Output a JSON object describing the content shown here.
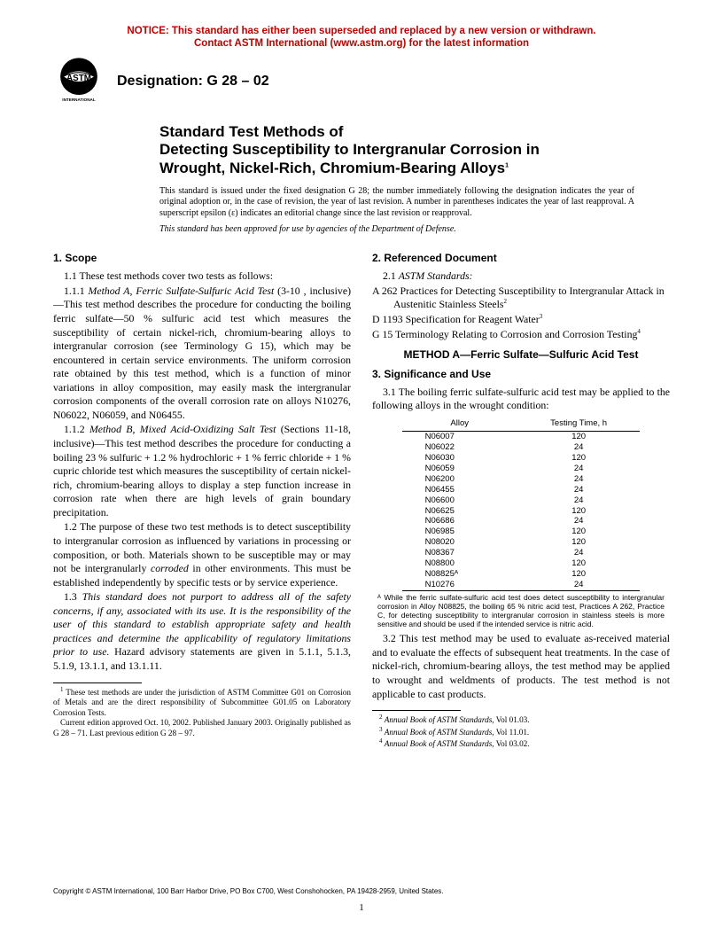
{
  "notice": {
    "line1": "NOTICE: This standard has either been superseded and replaced by a new version or withdrawn.",
    "line2": "Contact ASTM International (www.astm.org) for the latest information",
    "color": "#c00000"
  },
  "logo": {
    "text_top": "ASTM",
    "text_bottom": "INTERNATIONAL",
    "fill": "#000000"
  },
  "designation": "Designation: G 28 – 02",
  "title": {
    "l1": "Standard Test Methods of",
    "l2": "Detecting Susceptibility to Intergranular Corrosion in",
    "l3": "Wrought, Nickel-Rich, Chromium-Bearing Alloys"
  },
  "title_sup": "1",
  "issue_note": "This standard is issued under the fixed designation G 28; the number immediately following the designation indicates the year of original adoption or, in the case of revision, the year of last revision. A number in parentheses indicates the year of last reapproval. A superscript epsilon (ε) indicates an editorial change since the last revision or reapproval.",
  "dod_note": "This standard has been approved for use by agencies of the Department of Defense.",
  "left": {
    "scope_head": "1. Scope",
    "p1_1": "1.1 These test methods cover two tests as follows:",
    "p1_1_1_label": "1.1.1 ",
    "p1_1_1_ital": "Method A, Ferric Sulfate-Sulfuric Acid Test",
    "p1_1_1_rest": " (3-10 , inclusive)—This test method describes the procedure for conducting the boiling ferric sulfate—50 % sulfuric acid test which measures the susceptibility of certain nickel-rich, chromium-bearing alloys to intergranular corrosion (see Terminology G 15), which may be encountered in certain service environments. The uniform corrosion rate obtained by this test method, which is a function of minor variations in alloy composition, may easily mask the intergranular corrosion components of the overall corrosion rate on alloys N10276, N06022, N06059, and N06455.",
    "p1_1_2_label": "1.1.2 ",
    "p1_1_2_ital": "Method B, Mixed Acid-Oxidizing Salt Test",
    "p1_1_2_rest": " (Sections 11-18, inclusive)—This test method describes the procedure for conducting a boiling 23 % sulfuric + 1.2 % hydrochloric + 1 % ferric chloride + 1 % cupric chloride test which measures the susceptibility of certain nickel-rich, chromium-bearing alloys to display a step function increase in corrosion rate when there are high levels of grain boundary precipitation.",
    "p1_2a": "1.2 The purpose of these two test methods is to detect susceptibility to intergranular corrosion as influenced by variations in processing or composition, or both. Materials shown to be susceptible may or may not be intergranularly ",
    "p1_2_ital": "corroded",
    "p1_2b": " in other environments. This must be established independently by specific tests or by service experience.",
    "p1_3_label": "1.3 ",
    "p1_3_ital": "This standard does not purport to address all of the safety concerns, if any, associated with its use. It is the responsibility of the user of this standard to establish appropriate safety and health practices and determine the applicability of regulatory limitations prior to use.",
    "p1_3_rest": " Hazard advisory statements are given in 5.1.1, 5.1.3, 5.1.9, 13.1.1, and 13.1.11.",
    "fn1a": " These test methods are under the jurisdiction of ASTM Committee G01 on Corrosion of Metals and are the direct responsibility of Subcommittee G01.05 on Laboratory Corrosion Tests.",
    "fn1b": "Current edition approved Oct. 10, 2002. Published January 2003. Originally published as G 28 – 71. Last previous edition G 28 – 97."
  },
  "right": {
    "ref_head": "2. Referenced Document",
    "astm_std": "2.1 ASTM Standards:",
    "ref1a": "A 262 Practices for Detecting Susceptibility to Intergranular Attack in Austenitic Stainless Steels",
    "ref2a": "D 1193 Specification for Reagent Water",
    "ref3a": "G 15 Terminology Relating to Corrosion and Corrosion Testing",
    "method_head": "METHOD A—Ferric Sulfate—Sulfuric Acid Test",
    "sig_head": "3. Significance and Use",
    "p3_1": "3.1 The boiling ferric sulfate-sulfuric acid test may be applied to the following alloys in the wrought condition:",
    "table": {
      "head_alloy": "Alloy",
      "head_time": "Testing Time, h",
      "rows": [
        {
          "a": "N06007",
          "t": "120"
        },
        {
          "a": "N06022",
          "t": "24"
        },
        {
          "a": "N06030",
          "t": "120"
        },
        {
          "a": "N06059",
          "t": "24"
        },
        {
          "a": "N06200",
          "t": "24"
        },
        {
          "a": "N06455",
          "t": "24"
        },
        {
          "a": "N06600",
          "t": "24"
        },
        {
          "a": "N06625",
          "t": "120"
        },
        {
          "a": "N06686",
          "t": "24"
        },
        {
          "a": "N06985",
          "t": "120"
        },
        {
          "a": "N08020",
          "t": "120"
        },
        {
          "a": "N08367",
          "t": "24"
        },
        {
          "a": "N08800",
          "t": "120"
        },
        {
          "a": "N08825ᴬ",
          "t": "120"
        },
        {
          "a": "N10276",
          "t": "24"
        }
      ],
      "noteA": "ᴬ While the ferric sulfate-sulfuric acid test does detect susceptibility to intergranular corrosion in Alloy N08825, the boiling 65 % nitric acid test, Practices A 262, Practice C, for detecting susceptibility to intergranular corrosion in stainless steels is more sensitive and should be used if the intended service is nitric acid."
    },
    "p3_2": "3.2 This test method may be used to evaluate as-received material and to evaluate the effects of subsequent heat treatments. In the case of nickel-rich, chromium-bearing alloys, the test method may be applied to wrought and weldments of products. The test method is not applicable to cast products.",
    "fn2_ital": "Annual Book of ASTM Standards",
    "fn2_rest": ", Vol 01.03.",
    "fn3_ital": "Annual Book of ASTM Standards",
    "fn3_rest": ", Vol 11.01.",
    "fn4_ital": "Annual Book of ASTM Standards",
    "fn4_rest": ", Vol 03.02."
  },
  "copyright": "Copyright © ASTM International, 100 Barr Harbor Drive, PO Box C700, West Conshohocken, PA 19428-2959, United States.",
  "pagenum": "1"
}
